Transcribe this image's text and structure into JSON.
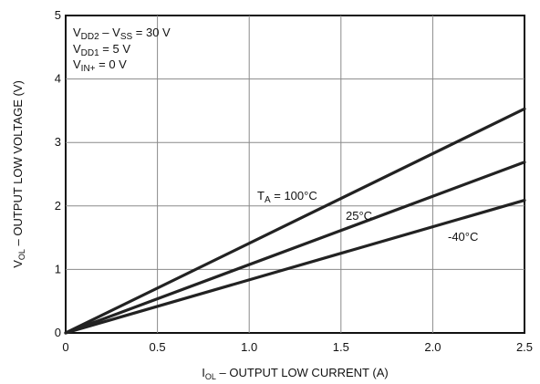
{
  "chart_data": {
    "type": "line",
    "xlabel": {
      "main": "I",
      "sub": "OL",
      "rest": " – OUTPUT LOW CURRENT (A)"
    },
    "ylabel": {
      "main": "V",
      "sub": "OL",
      "rest": " – OUTPUT LOW VOLTAGE (V)"
    },
    "xlim": [
      0,
      2.5
    ],
    "ylim": [
      0,
      5
    ],
    "x_ticks": [
      "0",
      "0.5",
      "1.0",
      "1.5",
      "2.0",
      "2.5"
    ],
    "y_ticks": [
      "0",
      "1",
      "2",
      "3",
      "4",
      "5"
    ],
    "grid": true,
    "conditions": [
      {
        "main": "V",
        "sub": "DD2",
        "rest": " – V",
        "sub2": "SS",
        "rest2": " = 30 V"
      },
      {
        "main": "V",
        "sub": "DD1",
        "rest": " = 5 V"
      },
      {
        "main": "V",
        "sub": "IN+",
        "rest": " = 0 V"
      }
    ],
    "series": [
      {
        "name_main": "T",
        "name_sub": "A",
        "name_rest": " = 100°C",
        "x": [
          0,
          2.5
        ],
        "y": [
          0,
          3.53
        ]
      },
      {
        "name_main": "25°C",
        "x": [
          0,
          2.5
        ],
        "y": [
          0,
          2.69
        ]
      },
      {
        "name_main": "-40°C",
        "x": [
          0,
          2.5
        ],
        "y": [
          0,
          2.09
        ]
      }
    ]
  }
}
